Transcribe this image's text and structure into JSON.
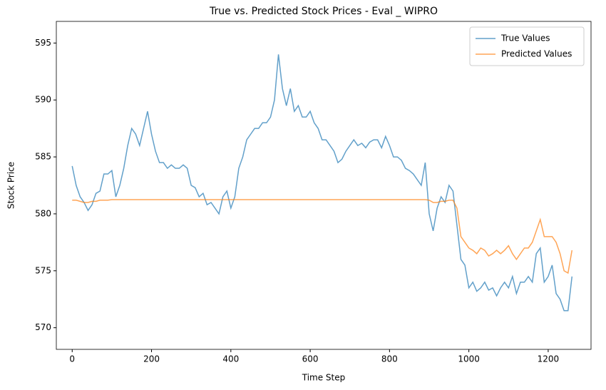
{
  "chart_data": {
    "type": "line",
    "title": "True vs. Predicted Stock Prices - Eval _ WIPRO",
    "xlabel": "Time Step",
    "ylabel": "Stock Price",
    "x": [
      0,
      10,
      20,
      30,
      40,
      50,
      60,
      70,
      80,
      90,
      100,
      110,
      120,
      130,
      140,
      150,
      160,
      170,
      180,
      190,
      200,
      210,
      220,
      230,
      240,
      250,
      260,
      270,
      280,
      290,
      300,
      310,
      320,
      330,
      340,
      350,
      360,
      370,
      380,
      390,
      400,
      410,
      420,
      430,
      440,
      450,
      460,
      470,
      480,
      490,
      500,
      510,
      520,
      530,
      540,
      550,
      560,
      570,
      580,
      590,
      600,
      610,
      620,
      630,
      640,
      650,
      660,
      670,
      680,
      690,
      700,
      710,
      720,
      730,
      740,
      750,
      760,
      770,
      780,
      790,
      800,
      810,
      820,
      830,
      840,
      850,
      860,
      870,
      880,
      890,
      900,
      910,
      920,
      930,
      940,
      950,
      960,
      970,
      980,
      990,
      1000,
      1010,
      1020,
      1030,
      1040,
      1050,
      1060,
      1070,
      1080,
      1090,
      1100,
      1110,
      1120,
      1130,
      1140,
      1150,
      1160,
      1170,
      1180,
      1190,
      1200,
      1210,
      1220,
      1230,
      1240,
      1250,
      1260
    ],
    "series": [
      {
        "name": "True Values",
        "color": "#1f77b4",
        "values": [
          584.2,
          582.5,
          581.5,
          581,
          580.3,
          580.8,
          581.8,
          582,
          583.5,
          583.5,
          583.8,
          581.5,
          582.5,
          584,
          586,
          587.5,
          587,
          586,
          587.5,
          589,
          587,
          585.5,
          584.5,
          584.5,
          584,
          584.3,
          584,
          584,
          584.3,
          584,
          582.5,
          582.3,
          581.5,
          581.8,
          580.8,
          581,
          580.5,
          580,
          581.5,
          582,
          580.5,
          581.5,
          584,
          585,
          586.5,
          587,
          587.5,
          587.5,
          588,
          588,
          588.5,
          590,
          594,
          591,
          589.5,
          591,
          589,
          589.5,
          588.5,
          588.5,
          589,
          588,
          587.5,
          586.5,
          586.5,
          586,
          585.5,
          584.5,
          584.8,
          585.5,
          586,
          586.5,
          586,
          586.2,
          585.8,
          586.3,
          586.5,
          586.5,
          585.8,
          586.8,
          586,
          585,
          585,
          584.7,
          584,
          583.8,
          583.5,
          583,
          582.5,
          584.5,
          580,
          578.5,
          580.5,
          581.5,
          581,
          582.5,
          582,
          579,
          576,
          575.5,
          573.5,
          574,
          573.2,
          573.5,
          574,
          573.3,
          573.5,
          572.8,
          573.5,
          574,
          573.5,
          574.5,
          573,
          574,
          574,
          574.5,
          574,
          576.5,
          577,
          574,
          574.5,
          575.5,
          573,
          572.5,
          571.5,
          571.5,
          574.5
        ]
      },
      {
        "name": "Predicted Values",
        "color": "#ff7f0e",
        "values": [
          581.2,
          581.2,
          581.1,
          581,
          581,
          581.1,
          581.1,
          581.2,
          581.2,
          581.2,
          581.25,
          581.25,
          581.25,
          581.25,
          581.25,
          581.25,
          581.25,
          581.25,
          581.25,
          581.25,
          581.25,
          581.25,
          581.25,
          581.25,
          581.25,
          581.25,
          581.25,
          581.25,
          581.25,
          581.25,
          581.25,
          581.25,
          581.25,
          581.25,
          581.25,
          581.25,
          581.25,
          581.25,
          581.25,
          581.25,
          581.25,
          581.25,
          581.25,
          581.25,
          581.25,
          581.25,
          581.25,
          581.25,
          581.25,
          581.25,
          581.25,
          581.25,
          581.25,
          581.25,
          581.25,
          581.25,
          581.25,
          581.25,
          581.25,
          581.25,
          581.25,
          581.25,
          581.25,
          581.25,
          581.25,
          581.25,
          581.25,
          581.25,
          581.25,
          581.25,
          581.25,
          581.25,
          581.25,
          581.25,
          581.25,
          581.25,
          581.25,
          581.25,
          581.25,
          581.25,
          581.25,
          581.25,
          581.25,
          581.25,
          581.25,
          581.25,
          581.25,
          581.25,
          581.25,
          581.25,
          581.2,
          581,
          581,
          581.1,
          581.1,
          581.2,
          581.2,
          580.5,
          578,
          577.5,
          577,
          576.8,
          576.5,
          577,
          576.8,
          576.3,
          576.5,
          576.8,
          576.5,
          576.8,
          577.2,
          576.5,
          576,
          576.5,
          577,
          577,
          577.5,
          578.5,
          579.5,
          578,
          578,
          578,
          577.5,
          576.5,
          575,
          574.8,
          576.8
        ]
      }
    ],
    "xlim": [
      -40,
      1308
    ],
    "ylim": [
      568.1,
      596.9
    ],
    "xticks": [
      0,
      200,
      400,
      600,
      800,
      1000,
      1200
    ],
    "yticks": [
      570,
      575,
      580,
      585,
      590,
      595
    ],
    "grid": false,
    "legend": "upper right"
  }
}
